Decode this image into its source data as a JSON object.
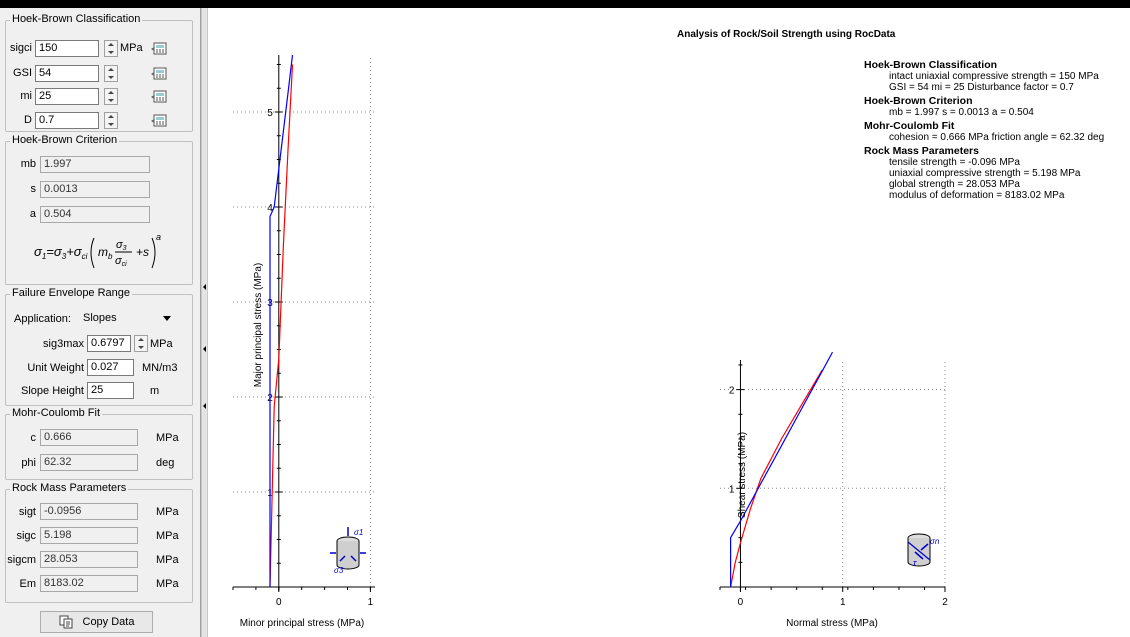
{
  "hb_classification": {
    "title": "Hoek-Brown Classification",
    "sigci": {
      "label": "sigci",
      "value": "150",
      "unit": "MPa"
    },
    "gsi": {
      "label": "GSI",
      "value": "54"
    },
    "mi": {
      "label": "mi",
      "value": "25"
    },
    "d": {
      "label": "D",
      "value": "0.7"
    }
  },
  "hb_criterion": {
    "title": "Hoek-Brown Criterion",
    "mb": {
      "label": "mb",
      "value": "1.997"
    },
    "s": {
      "label": "s",
      "value": "0.0013"
    },
    "a": {
      "label": "a",
      "value": "0.504"
    }
  },
  "failure_envelope": {
    "title": "Failure Envelope Range",
    "application": {
      "label": "Application:",
      "value": "Slopes"
    },
    "sig3max": {
      "label": "sig3max",
      "value": "0.6797",
      "unit": "MPa"
    },
    "unit_weight": {
      "label": "Unit Weight",
      "value": "0.027",
      "unit": "MN/m3"
    },
    "slope_height": {
      "label": "Slope Height",
      "value": "25",
      "unit": "m"
    }
  },
  "mohr_coulomb": {
    "title": "Mohr-Coulomb Fit",
    "c": {
      "label": "c",
      "value": "0.666",
      "unit": "MPa"
    },
    "phi": {
      "label": "phi",
      "value": "62.32",
      "unit": "deg"
    }
  },
  "rock_mass": {
    "title": "Rock Mass Parameters",
    "sigt": {
      "label": "sigt",
      "value": "-0.0956",
      "unit": "MPa"
    },
    "sigc": {
      "label": "sigc",
      "value": "5.198",
      "unit": "MPa"
    },
    "sigcm": {
      "label": "sigcm",
      "value": "28.053",
      "unit": "MPa"
    },
    "em": {
      "label": "Em",
      "value": "8183.02",
      "unit": "MPa"
    }
  },
  "copy_button": {
    "label": "Copy Data"
  },
  "icons": [
    "calculator-icon",
    "copy-icon",
    "cylinder-sample-icon"
  ],
  "colors": {
    "hb_curve": "#ff0000",
    "mc_line": "#0000ff",
    "sample_icon": "#0000cc"
  },
  "analysis": {
    "title": "Analysis of Rock/Soil Strength using RocData",
    "sections": [
      {
        "heading": "Hoek-Brown Classification",
        "lines": [
          "intact uniaxial compressive strength = 150 MPa",
          "GSI = 54    mi = 25    Disturbance factor = 0.7"
        ]
      },
      {
        "heading": "Hoek-Brown Criterion",
        "lines": [
          "mb = 1.997    s = 0.0013    a = 0.504"
        ]
      },
      {
        "heading": "Mohr-Coulomb Fit",
        "lines": [
          "cohesion = 0.666 MPa    friction angle = 62.32 deg"
        ]
      },
      {
        "heading": "Rock Mass Parameters",
        "lines": [
          "tensile strength = -0.096 MPa",
          "uniaxial compressive strength = 5.198 MPa",
          "global strength = 28.053 MPa",
          "modulus of deformation = 8183.02 MPa"
        ]
      }
    ]
  },
  "chart_data": [
    {
      "type": "line",
      "xlabel": "Minor principal stress (MPa)",
      "ylabel": "Major principal stress (MPa)",
      "xlim": [
        -0.5,
        1.05
      ],
      "ylim": [
        0,
        5.6
      ],
      "xticks": [
        0,
        1
      ],
      "yticks": [
        1,
        2,
        3,
        4,
        5
      ],
      "grid": true,
      "series": [
        {
          "color": "#ff0000",
          "x": [
            -0.096,
            -0.05,
            0,
            0.05,
            0.1,
            0.15
          ],
          "y": [
            0.0,
            1.9,
            2.4,
            3.6,
            4.6,
            5.5
          ]
        },
        {
          "color": "#0000ff",
          "x": [
            -0.096,
            -0.096,
            -0.05,
            0,
            0.05,
            0.1,
            0.15
          ],
          "y": [
            0.0,
            3.9,
            4.0,
            4.4,
            4.8,
            5.2,
            5.6
          ]
        }
      ]
    },
    {
      "type": "line",
      "xlabel": "Normal stress (MPa)",
      "ylabel": "Shear stress (MPa)",
      "xlim": [
        -0.2,
        2.0
      ],
      "ylim": [
        0,
        2.3
      ],
      "xticks": [
        0,
        1,
        2
      ],
      "yticks": [
        1,
        2
      ],
      "grid": true,
      "series": [
        {
          "color": "#ff0000",
          "x": [
            -0.096,
            -0.05,
            0,
            0.1,
            0.2,
            0.4,
            0.6,
            0.8
          ],
          "y": [
            0.0,
            0.25,
            0.45,
            0.8,
            1.1,
            1.5,
            1.85,
            2.2
          ]
        },
        {
          "color": "#0000ff",
          "x": [
            -0.096,
            -0.096,
            0,
            0.2,
            0.4,
            0.6,
            0.8,
            0.9
          ],
          "y": [
            0.0,
            0.5,
            0.67,
            1.05,
            1.43,
            1.81,
            2.19,
            2.38
          ]
        }
      ]
    }
  ]
}
